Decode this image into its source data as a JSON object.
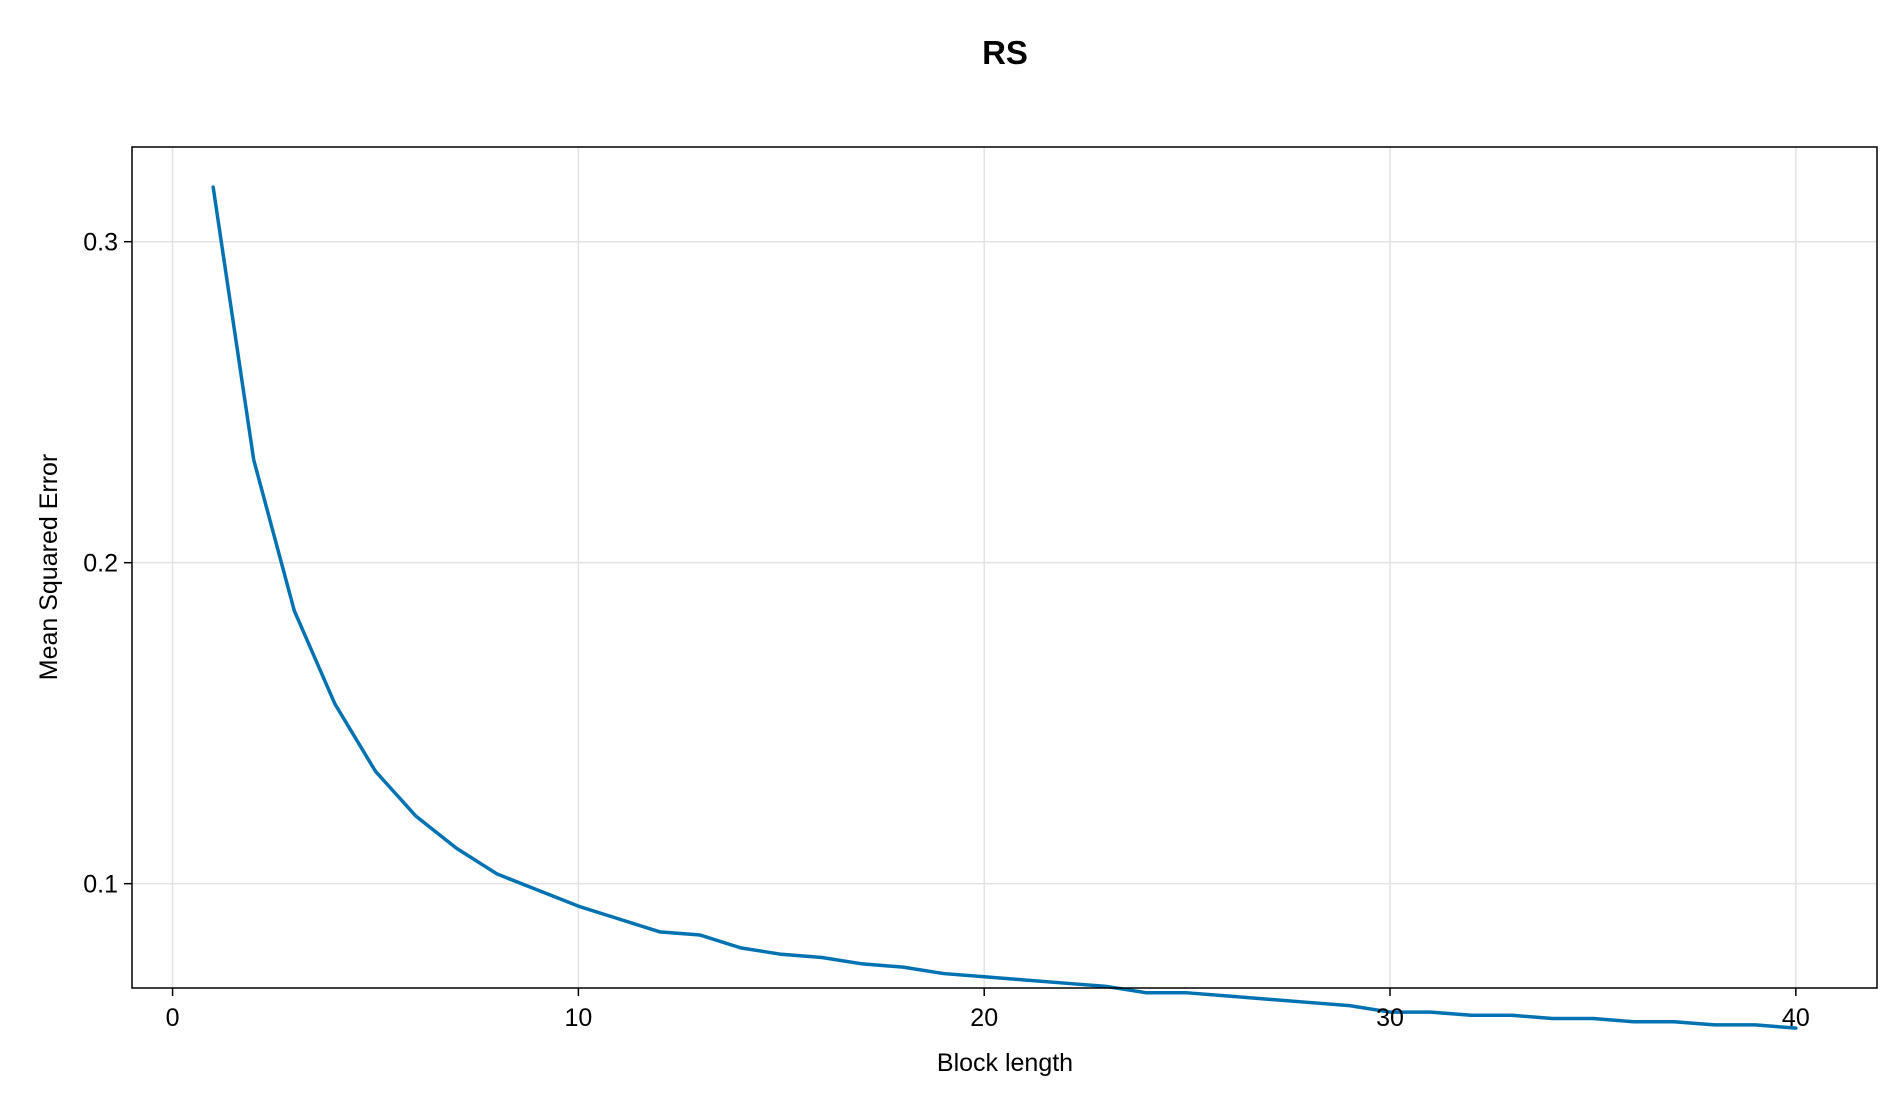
{
  "chart_data": {
    "type": "line",
    "title": "RS",
    "xlabel": "Block length",
    "ylabel": "Mean Squared Error",
    "xlim": [
      -1,
      42
    ],
    "ylim": [
      0.0675,
      0.3295
    ],
    "xticks": [
      0,
      10,
      20,
      30,
      40
    ],
    "yticks": [
      0.1,
      0.2,
      0.3
    ],
    "grid": true,
    "series": [
      {
        "color": "#0072b2",
        "x": [
          1,
          2,
          3,
          4,
          5,
          6,
          7,
          8,
          9,
          10,
          11,
          12,
          13,
          14,
          15,
          16,
          17,
          18,
          19,
          20,
          21,
          22,
          23,
          24,
          25,
          26,
          27,
          28,
          29,
          30,
          31,
          32,
          33,
          34,
          35,
          36,
          37,
          38,
          39,
          40
        ],
        "y": [
          0.317,
          0.232,
          0.185,
          0.156,
          0.135,
          0.121,
          0.111,
          0.103,
          0.098,
          0.093,
          0.089,
          0.085,
          0.084,
          0.08,
          0.078,
          0.077,
          0.075,
          0.074,
          0.072,
          0.071,
          0.07,
          0.069,
          0.068,
          0.066,
          0.066,
          0.065,
          0.064,
          0.063,
          0.062,
          0.06,
          0.06,
          0.059,
          0.059,
          0.058,
          0.058,
          0.057,
          0.057,
          0.056,
          0.056,
          0.055
        ]
      }
    ]
  }
}
